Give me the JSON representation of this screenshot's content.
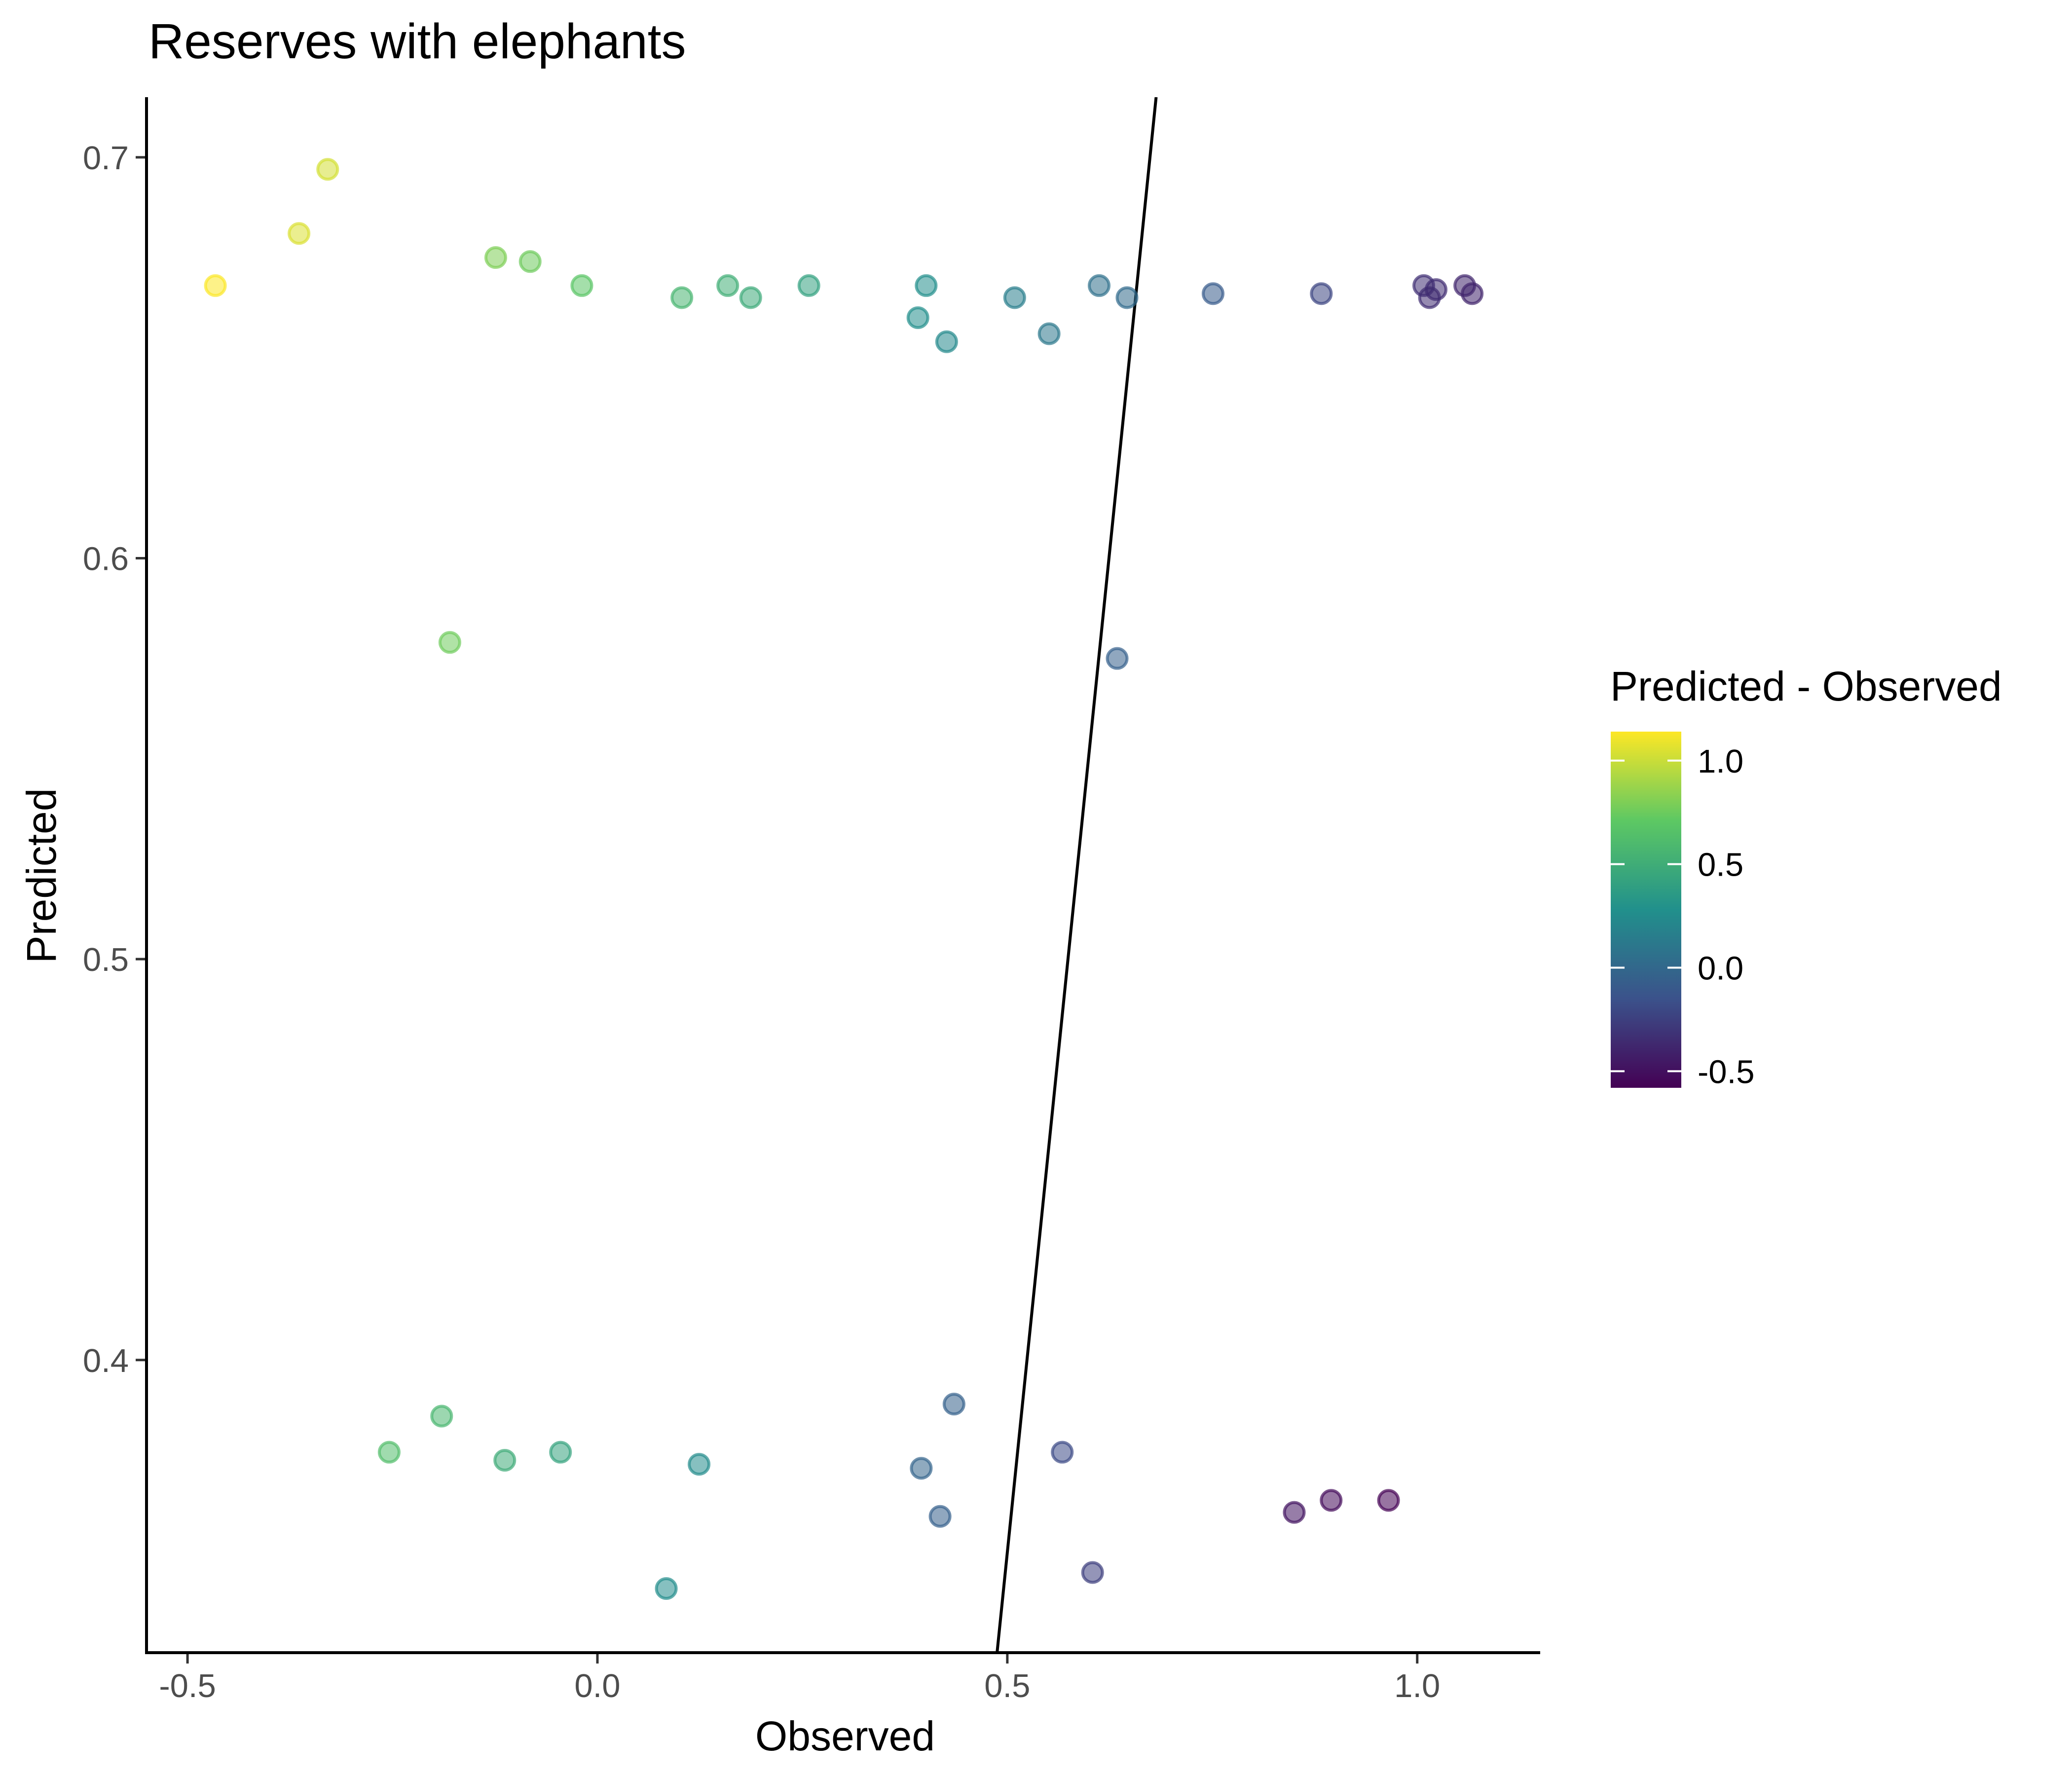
{
  "chart_data": {
    "type": "scatter",
    "title": "Reserves with elephants",
    "xlabel": "Observed",
    "ylabel": "Predicted",
    "xlim": [
      -0.55,
      1.15
    ],
    "ylim": [
      0.327,
      0.715
    ],
    "x_ticks": [
      -0.5,
      0.0,
      0.5,
      1.0
    ],
    "x_tick_labels": [
      "-0.5",
      "0.0",
      "0.5",
      "1.0"
    ],
    "y_ticks": [
      0.4,
      0.5,
      0.6,
      0.7
    ],
    "y_tick_labels": [
      "0.4",
      "0.5",
      "0.6",
      "0.7"
    ],
    "grid": false,
    "reference_line": {
      "intercept": -0.648,
      "slope": 2.0
    },
    "colorbar": {
      "title": "Predicted - Observed",
      "range": [
        -0.58,
        1.14
      ],
      "ticks": [
        -0.5,
        0.0,
        0.5,
        1.0
      ],
      "tick_labels": [
        "-0.5",
        "0.0",
        "0.5",
        "1.0"
      ],
      "palette": [
        "#440154",
        "#3B528B",
        "#21908C",
        "#5DC863",
        "#FDE725"
      ],
      "placement": "right"
    },
    "point_opacity": 0.55,
    "points": [
      {
        "x": -0.466,
        "y": 0.668
      },
      {
        "x": -0.364,
        "y": 0.681
      },
      {
        "x": -0.329,
        "y": 0.697
      },
      {
        "x": -0.124,
        "y": 0.675
      },
      {
        "x": -0.082,
        "y": 0.674
      },
      {
        "x": -0.019,
        "y": 0.668
      },
      {
        "x": 0.103,
        "y": 0.665
      },
      {
        "x": 0.159,
        "y": 0.668
      },
      {
        "x": 0.187,
        "y": 0.665
      },
      {
        "x": 0.258,
        "y": 0.668
      },
      {
        "x": 0.391,
        "y": 0.66
      },
      {
        "x": 0.401,
        "y": 0.668
      },
      {
        "x": 0.426,
        "y": 0.654
      },
      {
        "x": 0.509,
        "y": 0.665
      },
      {
        "x": 0.551,
        "y": 0.656
      },
      {
        "x": 0.612,
        "y": 0.668
      },
      {
        "x": 0.646,
        "y": 0.665
      },
      {
        "x": 0.751,
        "y": 0.666
      },
      {
        "x": 0.883,
        "y": 0.666
      },
      {
        "x": 1.008,
        "y": 0.668
      },
      {
        "x": 1.015,
        "y": 0.665
      },
      {
        "x": 1.023,
        "y": 0.667
      },
      {
        "x": 1.058,
        "y": 0.668
      },
      {
        "x": 1.067,
        "y": 0.666
      },
      {
        "x": -0.18,
        "y": 0.579
      },
      {
        "x": 0.634,
        "y": 0.575
      },
      {
        "x": -0.254,
        "y": 0.377
      },
      {
        "x": -0.19,
        "y": 0.386
      },
      {
        "x": -0.113,
        "y": 0.375
      },
      {
        "x": -0.045,
        "y": 0.377
      },
      {
        "x": 0.124,
        "y": 0.374
      },
      {
        "x": 0.084,
        "y": 0.343
      },
      {
        "x": 0.395,
        "y": 0.373
      },
      {
        "x": 0.435,
        "y": 0.389
      },
      {
        "x": 0.418,
        "y": 0.361
      },
      {
        "x": 0.567,
        "y": 0.377
      },
      {
        "x": 0.604,
        "y": 0.347
      },
      {
        "x": 0.85,
        "y": 0.362
      },
      {
        "x": 0.895,
        "y": 0.365
      },
      {
        "x": 0.965,
        "y": 0.365
      }
    ]
  }
}
